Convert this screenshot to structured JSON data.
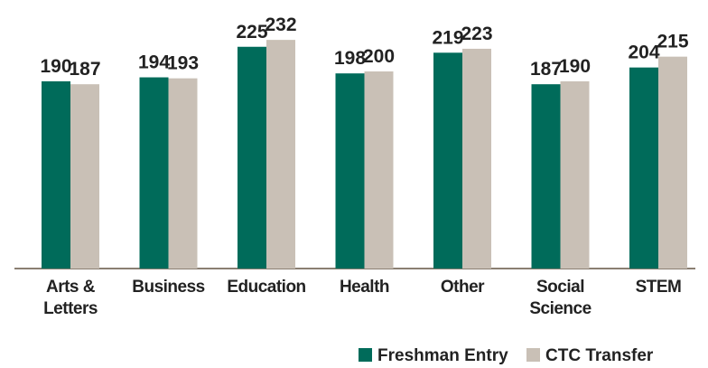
{
  "chart_data": {
    "type": "bar",
    "categories": [
      "Arts & Letters",
      "Business",
      "Education",
      "Health",
      "Other",
      "Social Science",
      "STEM"
    ],
    "series": [
      {
        "name": "Freshman Entry",
        "color": "#006b5a",
        "values": [
          190,
          194,
          225,
          198,
          219,
          187,
          204
        ]
      },
      {
        "name": "CTC Transfer",
        "color": "#c9c0b6",
        "values": [
          187,
          193,
          232,
          200,
          223,
          190,
          215
        ]
      }
    ],
    "ylim": [
      0,
      250
    ]
  }
}
